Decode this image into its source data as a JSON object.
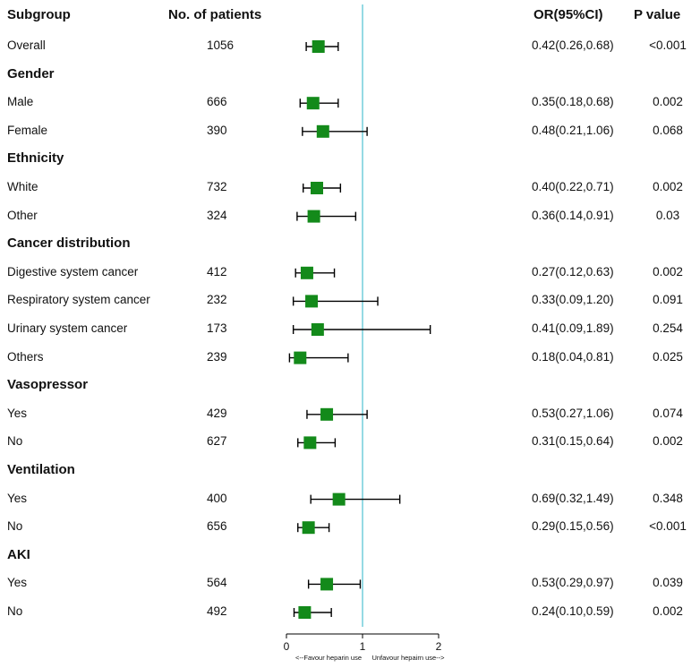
{
  "headers": {
    "subgroup": "Subgroup",
    "patients": "No. of patients",
    "or": "OR(95%CI)",
    "pvalue": "P value"
  },
  "chart_data": {
    "type": "forest",
    "title": "",
    "xlabel": "",
    "reference_line": 1,
    "xlim": [
      0,
      2
    ],
    "x_ticks": [
      "0",
      "1",
      "2"
    ],
    "x_note_left": "<--Favour heparin use",
    "x_note_right": "Unfavour hepairn use-->",
    "rows": [
      {
        "kind": "item",
        "label": "Overall",
        "n": "1056",
        "or": 0.42,
        "lo": 0.26,
        "hi": 0.68,
        "ci_text": "0.42(0.26,0.68)",
        "p": "<0.001"
      },
      {
        "kind": "group",
        "label": "Gender"
      },
      {
        "kind": "item",
        "label": "Male",
        "n": "666",
        "or": 0.35,
        "lo": 0.18,
        "hi": 0.68,
        "ci_text": "0.35(0.18,0.68)",
        "p": "0.002"
      },
      {
        "kind": "item",
        "label": "Female",
        "n": "390",
        "or": 0.48,
        "lo": 0.21,
        "hi": 1.06,
        "ci_text": "0.48(0.21,1.06)",
        "p": "0.068"
      },
      {
        "kind": "group",
        "label": "Ethnicity"
      },
      {
        "kind": "item",
        "label": "White",
        "n": "732",
        "or": 0.4,
        "lo": 0.22,
        "hi": 0.71,
        "ci_text": "0.40(0.22,0.71)",
        "p": "0.002"
      },
      {
        "kind": "item",
        "label": "Other",
        "n": "324",
        "or": 0.36,
        "lo": 0.14,
        "hi": 0.91,
        "ci_text": "0.36(0.14,0.91)",
        "p": "0.03"
      },
      {
        "kind": "group",
        "label": "Cancer distribution"
      },
      {
        "kind": "item",
        "label": "Digestive system cancer",
        "n": "412",
        "or": 0.27,
        "lo": 0.12,
        "hi": 0.63,
        "ci_text": "0.27(0.12,0.63)",
        "p": "0.002"
      },
      {
        "kind": "item",
        "label": "Respiratory system cancer",
        "n": "232",
        "or": 0.33,
        "lo": 0.09,
        "hi": 1.2,
        "ci_text": "0.33(0.09,1.20)",
        "p": "0.091"
      },
      {
        "kind": "item",
        "label": "Urinary system cancer",
        "n": "173",
        "or": 0.41,
        "lo": 0.09,
        "hi": 1.89,
        "ci_text": "0.41(0.09,1.89)",
        "p": "0.254"
      },
      {
        "kind": "item",
        "label": "Others",
        "n": "239",
        "or": 0.18,
        "lo": 0.04,
        "hi": 0.81,
        "ci_text": "0.18(0.04,0.81)",
        "p": "0.025"
      },
      {
        "kind": "group",
        "label": "Vasopressor"
      },
      {
        "kind": "item",
        "label": "Yes",
        "n": "429",
        "or": 0.53,
        "lo": 0.27,
        "hi": 1.06,
        "ci_text": "0.53(0.27,1.06)",
        "p": "0.074"
      },
      {
        "kind": "item",
        "label": "No",
        "n": "627",
        "or": 0.31,
        "lo": 0.15,
        "hi": 0.64,
        "ci_text": "0.31(0.15,0.64)",
        "p": "0.002"
      },
      {
        "kind": "group",
        "label": "Ventilation"
      },
      {
        "kind": "item",
        "label": "Yes",
        "n": "400",
        "or": 0.69,
        "lo": 0.32,
        "hi": 1.49,
        "ci_text": "0.69(0.32,1.49)",
        "p": "0.348"
      },
      {
        "kind": "item",
        "label": "No",
        "n": "656",
        "or": 0.29,
        "lo": 0.15,
        "hi": 0.56,
        "ci_text": "0.29(0.15,0.56)",
        "p": "<0.001"
      },
      {
        "kind": "group",
        "label": "AKI"
      },
      {
        "kind": "item",
        "label": "Yes",
        "n": "564",
        "or": 0.53,
        "lo": 0.29,
        "hi": 0.97,
        "ci_text": "0.53(0.29,0.97)",
        "p": "0.039"
      },
      {
        "kind": "item",
        "label": "No",
        "n": "492",
        "or": 0.24,
        "lo": 0.1,
        "hi": 0.59,
        "ci_text": "0.24(0.10,0.59)",
        "p": "0.002"
      }
    ],
    "colors": {
      "marker": "#138a1a",
      "reference": "#5cc6d6",
      "whisker": "#000000"
    }
  }
}
